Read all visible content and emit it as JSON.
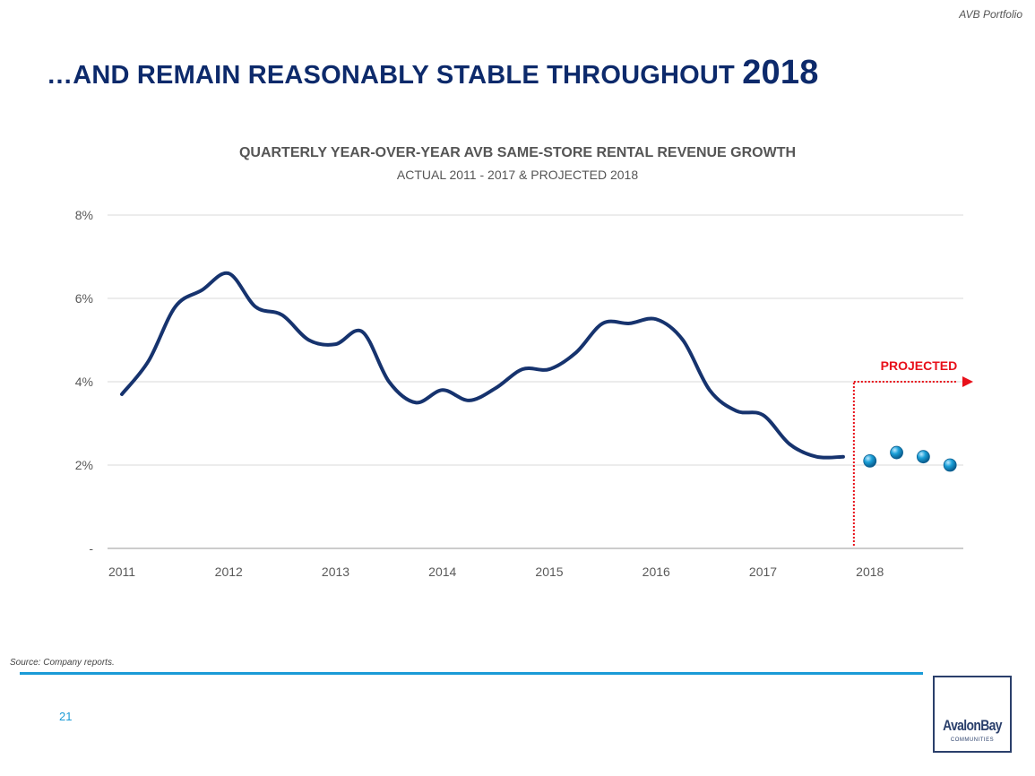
{
  "header": {
    "tag": "AVB Portfolio"
  },
  "page": {
    "title_main": "…AND REMAIN REASONABLY STABLE THROUGHOUT ",
    "title_year": "2018",
    "source": "Source:  Company reports.",
    "page_number": "21"
  },
  "logo": {
    "name": "AvalonBay",
    "sub": "COMMUNITIES"
  },
  "chart_data": {
    "type": "line",
    "title": "QUARTERLY YEAR-OVER-YEAR AVB SAME-STORE RENTAL REVENUE GROWTH",
    "subtitle": "ACTUAL 2011 - 2017 & PROJECTED 2018",
    "y_ticks": [
      "-",
      "2%",
      "4%",
      "6%",
      "8%"
    ],
    "y_tick_values": [
      0,
      2,
      4,
      6,
      8
    ],
    "ylim": [
      0,
      8
    ],
    "x_tick_labels": [
      "2011",
      "2012",
      "2013",
      "2014",
      "2015",
      "2016",
      "2017",
      "2018"
    ],
    "xlim": [
      2011,
      2019
    ],
    "grid": true,
    "series": [
      {
        "style": "line",
        "color": "#16336e",
        "points": [
          [
            2011.0,
            3.7
          ],
          [
            2011.25,
            4.5
          ],
          [
            2011.5,
            5.8
          ],
          [
            2011.75,
            6.2
          ],
          [
            2012.0,
            6.6
          ],
          [
            2012.25,
            5.8
          ],
          [
            2012.5,
            5.6
          ],
          [
            2012.75,
            5.0
          ],
          [
            2013.0,
            4.9
          ],
          [
            2013.25,
            5.2
          ],
          [
            2013.5,
            4.0
          ],
          [
            2013.75,
            3.5
          ],
          [
            2014.0,
            3.8
          ],
          [
            2014.25,
            3.55
          ],
          [
            2014.5,
            3.85
          ],
          [
            2014.75,
            4.3
          ],
          [
            2015.0,
            4.3
          ],
          [
            2015.25,
            4.7
          ],
          [
            2015.5,
            5.4
          ],
          [
            2015.75,
            5.4
          ],
          [
            2016.0,
            5.5
          ],
          [
            2016.25,
            5.0
          ],
          [
            2016.5,
            3.8
          ],
          [
            2016.75,
            3.3
          ],
          [
            2017.0,
            3.2
          ],
          [
            2017.25,
            2.5
          ],
          [
            2017.5,
            2.2
          ],
          [
            2017.75,
            2.2
          ]
        ]
      },
      {
        "style": "markers",
        "color": "#1aa0d8",
        "points": [
          [
            2018.0,
            2.1
          ],
          [
            2018.25,
            2.3
          ],
          [
            2018.5,
            2.2
          ],
          [
            2018.75,
            2.0
          ]
        ]
      }
    ],
    "annotation": {
      "label": "PROJECTED",
      "color": "#e8101a",
      "from_x": 2017.85,
      "to_x": 2019,
      "at_y": 4.0
    }
  }
}
